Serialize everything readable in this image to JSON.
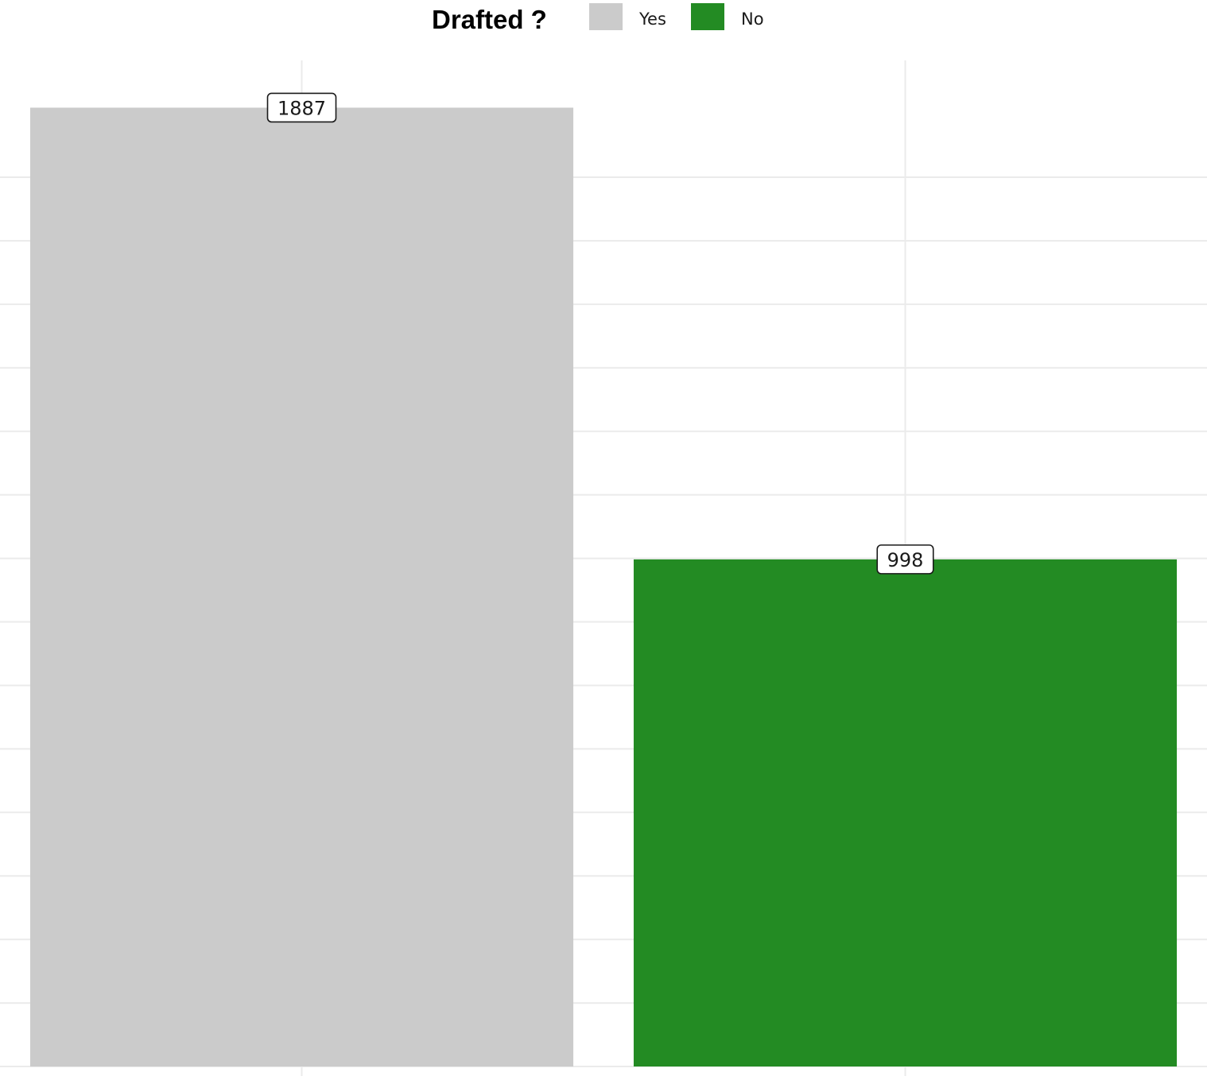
{
  "chart_data": {
    "type": "bar",
    "categories": [
      "Yes",
      "No"
    ],
    "values": [
      1887,
      998
    ],
    "data_labels": [
      "1887",
      "998"
    ],
    "colors": [
      "#cbcbcb",
      "#238b23"
    ],
    "legend": {
      "title": "Drafted ?",
      "position": "top",
      "entries": [
        {
          "label": "Yes",
          "color": "#cbcbcb"
        },
        {
          "label": "No",
          "color": "#238b23"
        }
      ]
    },
    "title": "",
    "xlabel": "",
    "ylabel": "",
    "ylim": [
      0,
      1980
    ],
    "y_gridlines": [
      0,
      250,
      500,
      750,
      1000,
      1250,
      1500,
      1750
    ],
    "grid": true
  }
}
